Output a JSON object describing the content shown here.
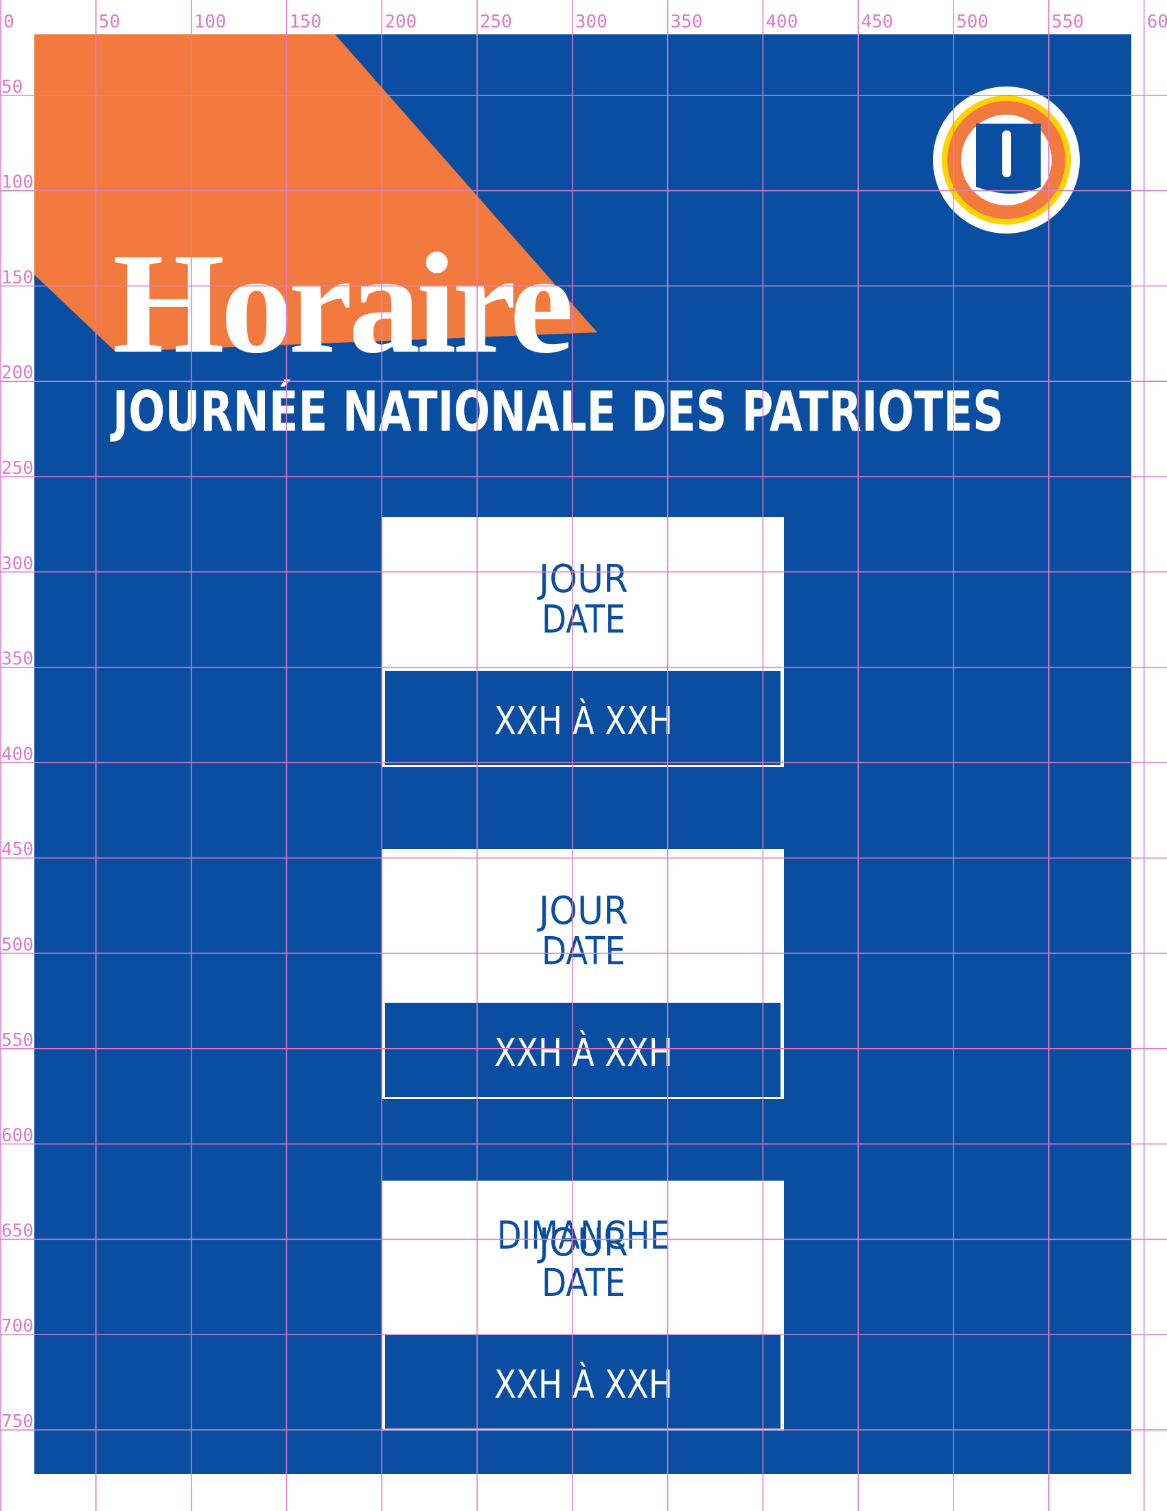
{
  "title": "Horaire",
  "subtitle": "JOURNÉE NATIONALE DES PATRIOTES",
  "schedule": [
    {
      "day": "JOUR",
      "date": "DATE",
      "hours": "XXH À XXH"
    },
    {
      "day": "JOUR",
      "date": "DATE",
      "hours": "XXH À XXH"
    },
    {
      "day": "JOUR",
      "date": "DATE",
      "hours": "XXH À XXH",
      "overlay": "DIMANCHE"
    }
  ],
  "ruler": {
    "x_labels": [
      "0",
      "50",
      "100",
      "150",
      "200",
      "250",
      "300",
      "350",
      "400",
      "450",
      "500",
      "550",
      "60"
    ],
    "y_labels": [
      "50",
      "100",
      "150",
      "200",
      "250",
      "300",
      "350",
      "400",
      "450",
      "500",
      "550",
      "600",
      "650",
      "700",
      "750"
    ]
  }
}
